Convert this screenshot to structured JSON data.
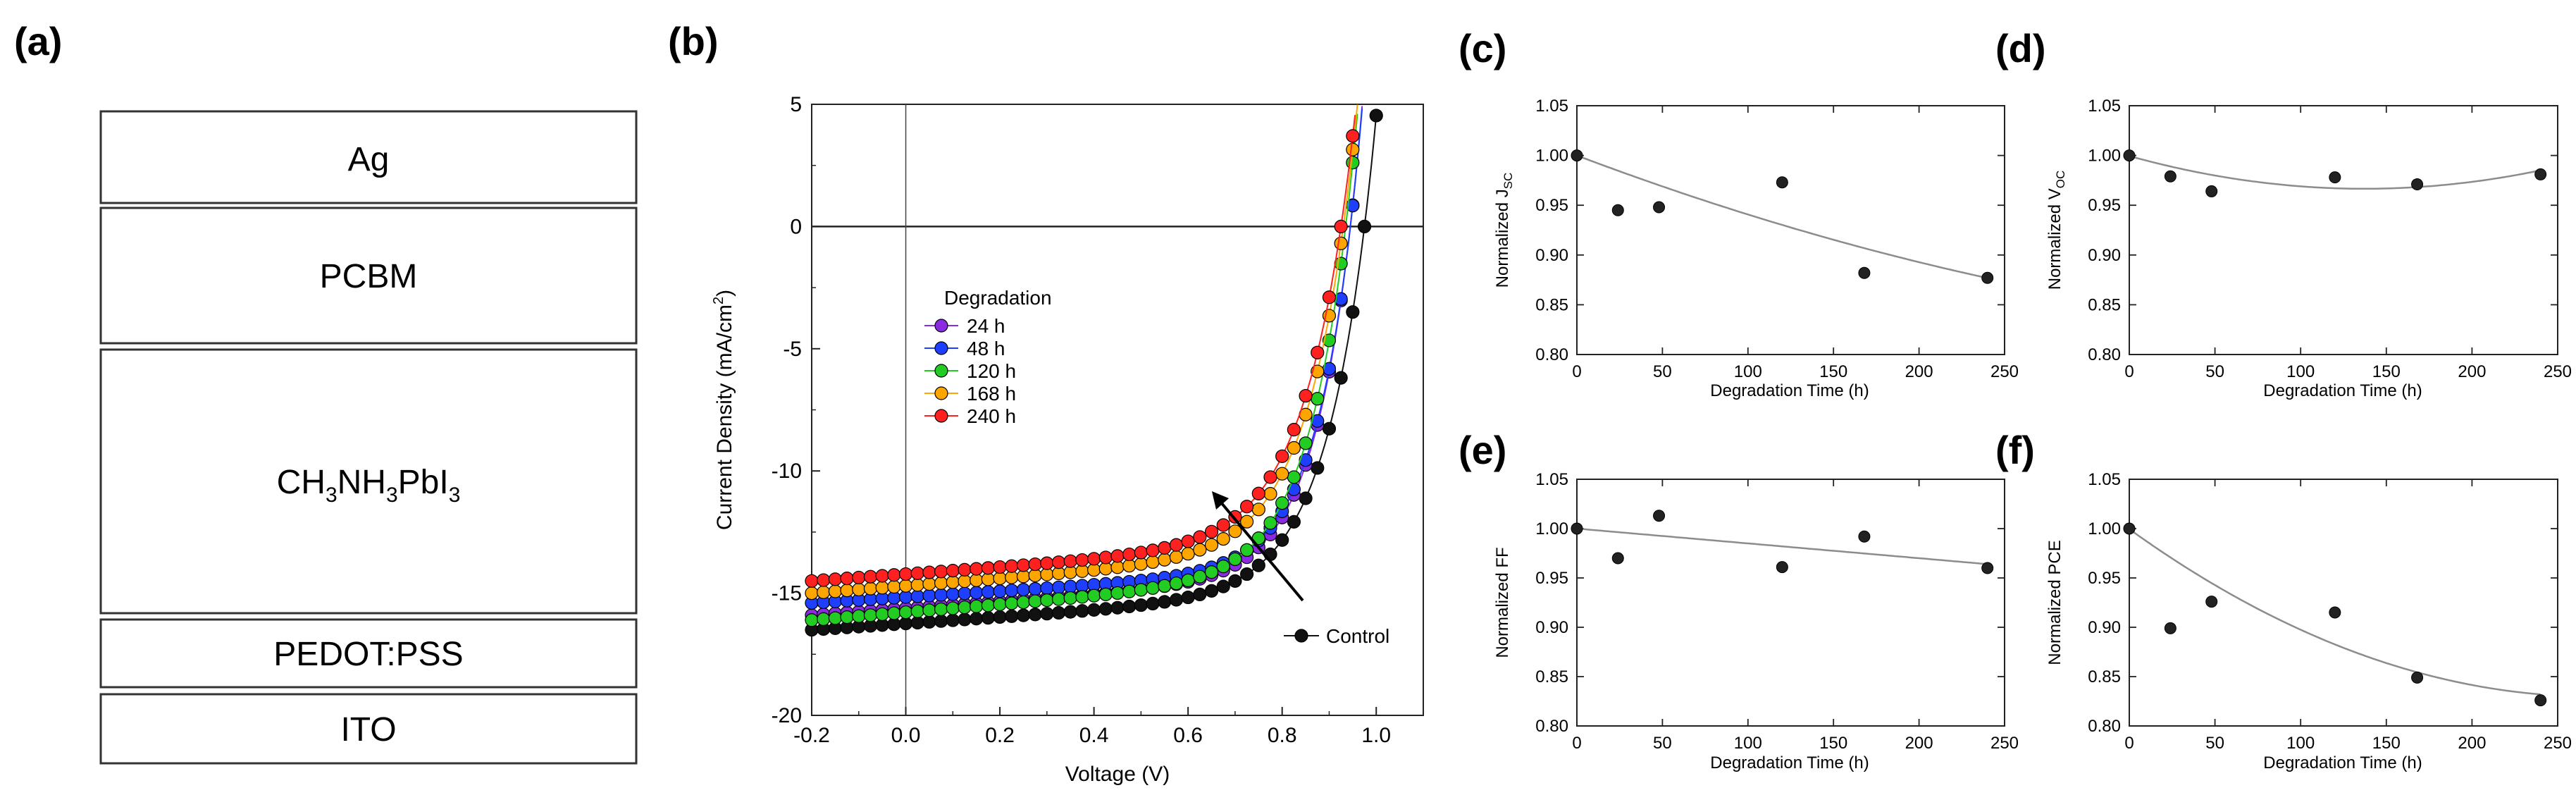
{
  "panel_labels": {
    "a": "(a)",
    "b": "(b)",
    "c": "(c)",
    "d": "(d)",
    "e": "(e)",
    "f": "(f)"
  },
  "device_stack": {
    "layers": {
      "ag": "Ag",
      "pcbm": "PCBM",
      "perovskite": {
        "p1": "CH",
        "s1": "3",
        "p2": "NH",
        "s2": "3",
        "p3": "PbI",
        "s3": "3"
      },
      "pedot": "PEDOT:PSS",
      "ito": "ITO"
    }
  },
  "colors": {
    "control": "#111111",
    "h24": "#8a2be2",
    "h48": "#1f3fff",
    "h120": "#22cc22",
    "h168": "#ffa500",
    "h240": "#ff2020",
    "fit_line": "#8c8c8c"
  },
  "chart_data": [
    {
      "id": "b",
      "type": "line",
      "xlabel": "Voltage (V)",
      "ylabel_main": "Current Density (mA/cm",
      "ylabel_sup": "2",
      "ylabel_end": ")",
      "xlim": [
        -0.2,
        1.1
      ],
      "ylim": [
        -20,
        5
      ],
      "xticks": [
        "-0.2",
        "0.0",
        "0.2",
        "0.4",
        "0.6",
        "0.8",
        "1.0"
      ],
      "yticks": [
        "5",
        "0",
        "-5",
        "-10",
        "-15",
        "-20"
      ],
      "legend_title": "Degradation",
      "series": [
        {
          "key": "control",
          "name": "Control",
          "jsc": -16.5,
          "slope": 1.3,
          "voc": 0.975,
          "n": 0.095
        },
        {
          "key": "h24",
          "name": "24 h",
          "jsc": -15.9,
          "slope": 1.4,
          "voc": 0.945,
          "n": 0.085
        },
        {
          "key": "h48",
          "name": "48 h",
          "jsc": -15.4,
          "slope": 1.2,
          "voc": 0.945,
          "n": 0.085
        },
        {
          "key": "h120",
          "name": "120 h",
          "jsc": -16.1,
          "slope": 1.6,
          "voc": 0.935,
          "n": 0.09
        },
        {
          "key": "h168",
          "name": "168 h",
          "jsc": -15.0,
          "slope": 1.5,
          "voc": 0.93,
          "n": 0.095
        },
        {
          "key": "h240",
          "name": "240 h",
          "jsc": -14.5,
          "slope": 1.4,
          "voc": 0.925,
          "n": 0.1
        }
      ],
      "annotation": "arrow indicating increasing degradation"
    },
    {
      "id": "c",
      "type": "scatter",
      "xlabel": "Degradation Time (h)",
      "ylabel_main": "Normalized J",
      "ylabel_sub": "SC",
      "xlim": [
        0,
        250
      ],
      "ylim": [
        0.8,
        1.05
      ],
      "xticks": [
        "0",
        "50",
        "100",
        "150",
        "200",
        "250"
      ],
      "yticks": [
        "1.05",
        "1.00",
        "0.95",
        "0.90",
        "0.85",
        "0.80"
      ],
      "x": [
        0,
        24,
        48,
        120,
        168,
        240
      ],
      "y": [
        1.0,
        0.945,
        0.948,
        0.973,
        0.882,
        0.877
      ],
      "fit": [
        1.0,
        -0.00065,
        5.7e-07
      ]
    },
    {
      "id": "d",
      "type": "scatter",
      "xlabel": "Degradation Time (h)",
      "ylabel_main": "Normalized V",
      "ylabel_sub": "OC",
      "xlim": [
        0,
        250
      ],
      "ylim": [
        0.8,
        1.05
      ],
      "xticks": [
        "0",
        "50",
        "100",
        "150",
        "200",
        "250"
      ],
      "yticks": [
        "1.05",
        "1.00",
        "0.95",
        "0.90",
        "0.85",
        "0.80"
      ],
      "x": [
        0,
        24,
        48,
        120,
        168,
        240
      ],
      "y": [
        1.0,
        0.979,
        0.964,
        0.978,
        0.971,
        0.981
      ],
      "fit": [
        0.9995,
        -0.00048,
        1.75e-06
      ]
    },
    {
      "id": "e",
      "type": "scatter",
      "xlabel": "Degradation Time (h)",
      "ylabel_main": "Normalized FF",
      "xlim": [
        0,
        250
      ],
      "ylim": [
        0.8,
        1.05
      ],
      "xticks": [
        "0",
        "50",
        "100",
        "150",
        "200",
        "250"
      ],
      "yticks": [
        "1.05",
        "1.00",
        "0.95",
        "0.90",
        "0.85",
        "0.80"
      ],
      "x": [
        0,
        24,
        48,
        120,
        168,
        240
      ],
      "y": [
        1.0,
        0.97,
        1.013,
        0.961,
        0.992,
        0.96
      ],
      "fit": [
        1.0,
        -0.00015,
        0.0
      ]
    },
    {
      "id": "f",
      "type": "scatter",
      "xlabel": "Degradation Time (h)",
      "ylabel_main": "Normalized PCE",
      "xlim": [
        0,
        250
      ],
      "ylim": [
        0.8,
        1.05
      ],
      "xticks": [
        "0",
        "50",
        "100",
        "150",
        "200",
        "250"
      ],
      "yticks": [
        "1.05",
        "1.00",
        "0.95",
        "0.90",
        "0.85",
        "0.80"
      ],
      "x": [
        0,
        24,
        48,
        120,
        168,
        240
      ],
      "y": [
        1.0,
        0.899,
        0.926,
        0.915,
        0.849,
        0.826
      ],
      "fit": [
        0.9995,
        -0.00125,
        2.3e-06
      ]
    }
  ]
}
